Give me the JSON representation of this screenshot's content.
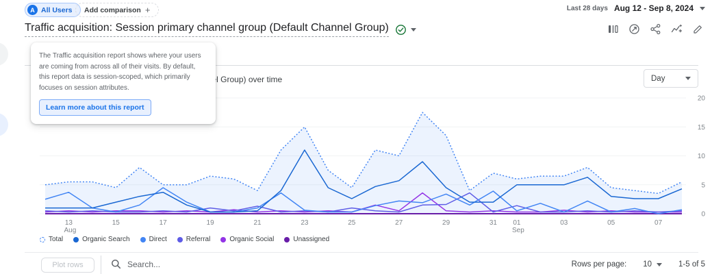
{
  "header": {
    "audience_chip": {
      "avatar_letter": "A",
      "label": "All Users"
    },
    "add_comparison_label": "Add comparison",
    "add_comparison_plus": "+",
    "date_preset": "Last 28 days",
    "date_range": "Aug 12 - Sep 8, 2024"
  },
  "report": {
    "title": "Traffic acquisition: Session primary channel group (Default Channel Group)",
    "toolbar_icons": [
      "comparison-bars-icon",
      "explore-circle-icon",
      "share-icon",
      "insights-icon",
      "edit-icon"
    ]
  },
  "tooltip": {
    "text": "The Traffic acquisition report shows where your users are coming from across all of their visits. By default, this report data is session-scoped, which primarily focuses on session attributes.",
    "button_label": "Learn more about this report"
  },
  "chart": {
    "title": "Session primary channel group (Default Channel Group) over time",
    "granularity": "Day"
  },
  "chart_data": {
    "type": "line",
    "title": "Session primary channel group (Default Channel Group) over time",
    "x": [
      "Aug 12",
      "Aug 13",
      "Aug 14",
      "Aug 15",
      "Aug 16",
      "Aug 17",
      "Aug 18",
      "Aug 19",
      "Aug 20",
      "Aug 21",
      "Aug 22",
      "Aug 23",
      "Aug 24",
      "Aug 25",
      "Aug 26",
      "Aug 27",
      "Aug 28",
      "Aug 29",
      "Aug 30",
      "Aug 31",
      "Sep 01",
      "Sep 02",
      "Sep 03",
      "Sep 04",
      "Sep 05",
      "Sep 06",
      "Sep 07",
      "Sep 08"
    ],
    "x_ticks": [
      {
        "i": 1,
        "label": "13",
        "sub": "Aug"
      },
      {
        "i": 3,
        "label": "15"
      },
      {
        "i": 5,
        "label": "17"
      },
      {
        "i": 7,
        "label": "19"
      },
      {
        "i": 9,
        "label": "21"
      },
      {
        "i": 11,
        "label": "23"
      },
      {
        "i": 13,
        "label": "25"
      },
      {
        "i": 15,
        "label": "27"
      },
      {
        "i": 17,
        "label": "29"
      },
      {
        "i": 19,
        "label": "31"
      },
      {
        "i": 20,
        "label": "01",
        "sub": "Sep"
      },
      {
        "i": 22,
        "label": "03"
      },
      {
        "i": 24,
        "label": "05"
      },
      {
        "i": 26,
        "label": "07"
      }
    ],
    "ylim": [
      0,
      20
    ],
    "y_ticks": [
      0,
      5,
      10,
      15,
      20
    ],
    "grid": true,
    "legend_position": "bottom",
    "area_fill_color": "rgba(66,133,244,0.10)",
    "series": [
      {
        "name": "Total",
        "color": "#4285f4",
        "style": "dotted",
        "area_fill": true,
        "values": [
          5,
          5.5,
          5.5,
          4.5,
          8,
          5,
          5,
          6.5,
          6,
          4,
          11,
          15,
          7.5,
          4.5,
          11,
          10,
          17.5,
          13.5,
          4,
          7,
          6,
          6.5,
          6.5,
          8,
          4.5,
          4,
          3.5,
          5.5
        ]
      },
      {
        "name": "Organic Search",
        "color": "#1967d2",
        "style": "solid",
        "values": [
          1,
          1,
          1,
          2,
          3,
          3.7,
          1.5,
          0.3,
          0.3,
          0.5,
          4,
          11,
          4.5,
          2.6,
          4.7,
          5.7,
          9,
          4.5,
          2,
          2,
          5,
          5,
          5,
          6.3,
          3,
          2.6,
          2.6,
          4.3
        ]
      },
      {
        "name": "Direct",
        "color": "#4285f4",
        "style": "solid",
        "values": [
          2.5,
          3.7,
          1,
          0.3,
          1.5,
          4.5,
          2,
          0.3,
          0.3,
          1,
          3.6,
          0.6,
          0.3,
          0.3,
          1.4,
          2.2,
          1.9,
          3.4,
          1.5,
          3.9,
          0.5,
          1.8,
          0.3,
          2.2,
          0.3,
          0.9,
          0,
          0.7
        ]
      },
      {
        "name": "Referral",
        "color": "#5e5ce6",
        "style": "solid",
        "values": [
          0.5,
          0.3,
          0.5,
          0.3,
          0.3,
          0.5,
          0.3,
          1,
          0.5,
          1.3,
          0.3,
          0.5,
          0.3,
          1,
          0.5,
          0.3,
          1.5,
          1.6,
          3.6,
          0.3,
          1.4,
          0.3,
          0.3,
          0.5,
          0.3,
          0.5,
          0.3,
          0.5
        ]
      },
      {
        "name": "Organic Social",
        "color": "#9334e6",
        "style": "solid",
        "values": [
          0.3,
          0.5,
          0.3,
          0.5,
          0.5,
          0.3,
          0.5,
          0.3,
          0.7,
          0.3,
          0.5,
          0.3,
          0.5,
          0.3,
          1.5,
          0.5,
          3.6,
          0.5,
          0.3,
          0.5,
          0.3,
          0.3,
          0.6,
          0.3,
          0.5,
          0.3,
          0.3,
          0.3
        ]
      },
      {
        "name": "Unassigned",
        "color": "#681da8",
        "style": "solid",
        "values": [
          0,
          0,
          0,
          0,
          0,
          0,
          0,
          0,
          0,
          0,
          0,
          0,
          0,
          0,
          0,
          0,
          0,
          0,
          0,
          0,
          0,
          0,
          0,
          0,
          0,
          0,
          0,
          0
        ]
      }
    ]
  },
  "footer": {
    "plot_rows_label": "Plot rows",
    "search_placeholder": "Search...",
    "rows_per_page_label": "Rows per page:",
    "rows_per_page_value": "10",
    "pagination": "1-5 of 5"
  }
}
